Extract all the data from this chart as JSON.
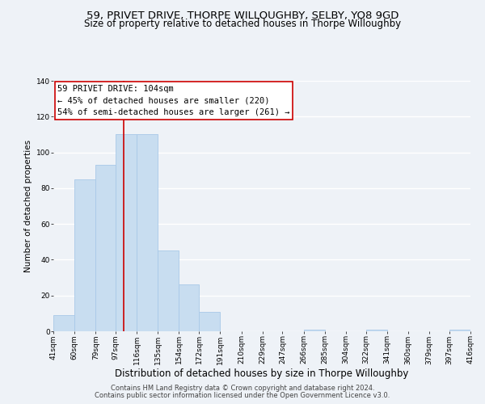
{
  "title": "59, PRIVET DRIVE, THORPE WILLOUGHBY, SELBY, YO8 9GD",
  "subtitle": "Size of property relative to detached houses in Thorpe Willoughby",
  "xlabel": "Distribution of detached houses by size in Thorpe Willoughby",
  "ylabel": "Number of detached properties",
  "bin_edges": [
    41,
    60,
    79,
    97,
    116,
    135,
    154,
    172,
    191,
    210,
    229,
    247,
    266,
    285,
    304,
    322,
    341,
    360,
    379,
    397,
    416
  ],
  "bar_heights": [
    9,
    85,
    93,
    110,
    110,
    45,
    26,
    11,
    0,
    0,
    0,
    0,
    1,
    0,
    0,
    1,
    0,
    0,
    0,
    1
  ],
  "bar_color": "#c8ddf0",
  "bar_edge_color": "#a8c8e8",
  "vline_x": 104,
  "vline_color": "#cc0000",
  "annotation_text_line1": "59 PRIVET DRIVE: 104sqm",
  "annotation_text_line2": "← 45% of detached houses are smaller (220)",
  "annotation_text_line3": "54% of semi-detached houses are larger (261) →",
  "annotation_box_color": "#ffffff",
  "annotation_box_edge": "#cc0000",
  "ylim": [
    0,
    140
  ],
  "yticks": [
    0,
    20,
    40,
    60,
    80,
    100,
    120,
    140
  ],
  "tick_labels": [
    "41sqm",
    "60sqm",
    "79sqm",
    "97sqm",
    "116sqm",
    "135sqm",
    "154sqm",
    "172sqm",
    "191sqm",
    "210sqm",
    "229sqm",
    "247sqm",
    "266sqm",
    "285sqm",
    "304sqm",
    "322sqm",
    "341sqm",
    "360sqm",
    "379sqm",
    "397sqm",
    "416sqm"
  ],
  "footer_line1": "Contains HM Land Registry data © Crown copyright and database right 2024.",
  "footer_line2": "Contains public sector information licensed under the Open Government Licence v3.0.",
  "background_color": "#eef2f7",
  "grid_color": "#ffffff",
  "title_fontsize": 9.5,
  "subtitle_fontsize": 8.5,
  "xlabel_fontsize": 8.5,
  "ylabel_fontsize": 7.5,
  "tick_fontsize": 6.5,
  "annotation_fontsize": 7.5,
  "footer_fontsize": 6.0
}
